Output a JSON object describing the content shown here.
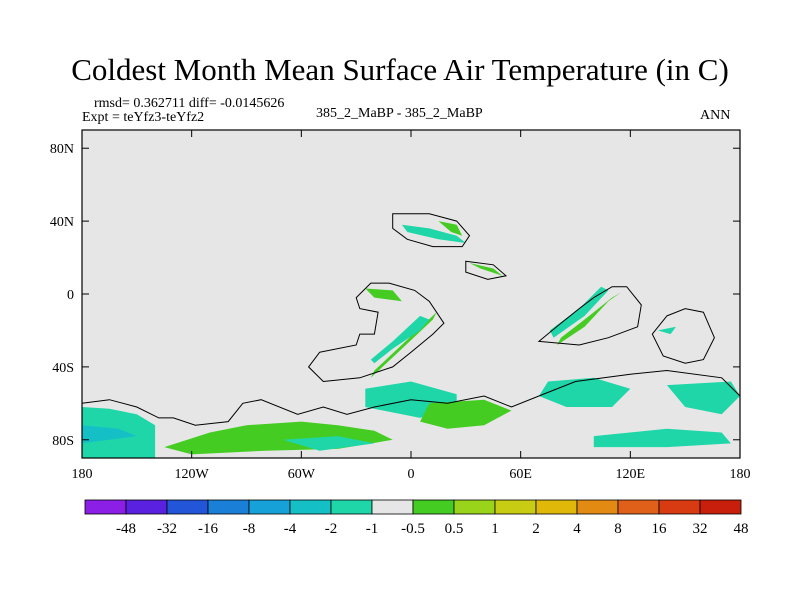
{
  "chart_data": {
    "type": "heatmap",
    "title": "Coldest Month Mean Surface Air Temperature (in C)",
    "stats_line": "rmsd= 0.362711  diff= -0.0145626",
    "expt_line": "Expt = teYfz3-teYfz2",
    "center_label": "385_2_MaBP - 385_2_MaBP",
    "right_label": "ANN",
    "x_ticks": [
      {
        "value": -180,
        "label": "180"
      },
      {
        "value": -120,
        "label": "120W"
      },
      {
        "value": -60,
        "label": "60W"
      },
      {
        "value": 0,
        "label": "0"
      },
      {
        "value": 60,
        "label": "60E"
      },
      {
        "value": 120,
        "label": "120E"
      },
      {
        "value": 180,
        "label": "180"
      }
    ],
    "y_ticks": [
      {
        "value": 80,
        "label": "80N"
      },
      {
        "value": 40,
        "label": "40N"
      },
      {
        "value": 0,
        "label": "0"
      },
      {
        "value": -40,
        "label": "40S"
      },
      {
        "value": -80,
        "label": "80S"
      }
    ],
    "xlim": [
      -180,
      180
    ],
    "ylim": [
      -90,
      90
    ],
    "colorbar": {
      "colors": [
        "#8b1fe6",
        "#5a22e0",
        "#2255d8",
        "#1a7fd6",
        "#16a2d9",
        "#14c0c6",
        "#1fd6a8",
        "#e6e6e6",
        "#44cc22",
        "#99d41a",
        "#c8cc12",
        "#e0b80a",
        "#e28a12",
        "#e0601a",
        "#d83a12",
        "#c81e0c"
      ],
      "labels": [
        "-48",
        "-32",
        "-16",
        "-8",
        "-4",
        "-2",
        "-1",
        "-0.5",
        "0.5",
        "1",
        "2",
        "4",
        "8",
        "16",
        "32",
        "48"
      ]
    },
    "anomaly_regions": [
      {
        "name": "antarctic-west-blue",
        "level": 6,
        "points": [
          [
            -180,
            -62
          ],
          [
            -165,
            -63
          ],
          [
            -150,
            -66
          ],
          [
            -140,
            -72
          ],
          [
            -140,
            -90
          ],
          [
            -180,
            -90
          ]
        ]
      },
      {
        "name": "antarctic-west-blue-deep",
        "level": 5,
        "points": [
          [
            -180,
            -72
          ],
          [
            -160,
            -74
          ],
          [
            -150,
            -78
          ],
          [
            -180,
            -82
          ]
        ]
      },
      {
        "name": "antarctic-peninsula-green",
        "level": 8,
        "points": [
          [
            -135,
            -84
          ],
          [
            -110,
            -76
          ],
          [
            -90,
            -72
          ],
          [
            -60,
            -70
          ],
          [
            -40,
            -72
          ],
          [
            -20,
            -75
          ],
          [
            -10,
            -80
          ],
          [
            -40,
            -85
          ],
          [
            -80,
            -86
          ],
          [
            -120,
            -88
          ]
        ]
      },
      {
        "name": "antarctic-east-cyan",
        "level": 6,
        "points": [
          [
            -70,
            -80
          ],
          [
            -40,
            -78
          ],
          [
            -20,
            -82
          ],
          [
            -50,
            -86
          ]
        ]
      },
      {
        "name": "south-atlantic-cyan",
        "level": 6,
        "points": [
          [
            -25,
            -52
          ],
          [
            0,
            -48
          ],
          [
            25,
            -55
          ],
          [
            25,
            -62
          ],
          [
            5,
            -68
          ],
          [
            -25,
            -62
          ]
        ]
      },
      {
        "name": "south-atlantic-green",
        "level": 8,
        "points": [
          [
            10,
            -60
          ],
          [
            40,
            -58
          ],
          [
            55,
            -64
          ],
          [
            40,
            -72
          ],
          [
            20,
            -74
          ],
          [
            5,
            -70
          ]
        ]
      },
      {
        "name": "indian-ocean-cyan",
        "level": 6,
        "points": [
          [
            75,
            -48
          ],
          [
            100,
            -46
          ],
          [
            120,
            -52
          ],
          [
            110,
            -62
          ],
          [
            85,
            -62
          ],
          [
            70,
            -56
          ]
        ]
      },
      {
        "name": "southern-ocean-east-cyan",
        "level": 6,
        "points": [
          [
            100,
            -78
          ],
          [
            140,
            -74
          ],
          [
            170,
            -76
          ],
          [
            175,
            -82
          ],
          [
            140,
            -84
          ],
          [
            100,
            -84
          ]
        ]
      },
      {
        "name": "south-pacific-east-cyan",
        "level": 6,
        "points": [
          [
            140,
            -50
          ],
          [
            175,
            -48
          ],
          [
            180,
            -56
          ],
          [
            170,
            -66
          ],
          [
            150,
            -62
          ]
        ]
      },
      {
        "name": "gulf-stream-green",
        "level": 8,
        "points": [
          [
            -22,
            -46
          ],
          [
            -5,
            -30
          ],
          [
            12,
            -14
          ],
          [
            14,
            -10
          ],
          [
            -3,
            -26
          ],
          [
            -20,
            -42
          ]
        ]
      },
      {
        "name": "south-america-coast-cyan",
        "level": 6,
        "points": [
          [
            -20,
            -38
          ],
          [
            -10,
            -30
          ],
          [
            5,
            -20
          ],
          [
            10,
            -14
          ],
          [
            5,
            -12
          ],
          [
            -10,
            -26
          ],
          [
            -22,
            -36
          ]
        ]
      },
      {
        "name": "tropical-atlantic-green",
        "level": 8,
        "points": [
          [
            -25,
            3
          ],
          [
            -10,
            2
          ],
          [
            -5,
            -4
          ],
          [
            -20,
            -2
          ]
        ]
      },
      {
        "name": "europe-cyan",
        "level": 6,
        "points": [
          [
            -5,
            38
          ],
          [
            10,
            36
          ],
          [
            25,
            32
          ],
          [
            30,
            28
          ],
          [
            15,
            30
          ],
          [
            -2,
            34
          ]
        ]
      },
      {
        "name": "europe-green",
        "level": 8,
        "points": [
          [
            15,
            40
          ],
          [
            25,
            38
          ],
          [
            28,
            32
          ],
          [
            22,
            34
          ]
        ]
      },
      {
        "name": "asia-green",
        "level": 8,
        "points": [
          [
            32,
            17
          ],
          [
            45,
            14
          ],
          [
            50,
            10
          ],
          [
            38,
            14
          ]
        ]
      },
      {
        "name": "pacific-green-band",
        "level": 8,
        "points": [
          [
            80,
            -28
          ],
          [
            95,
            -18
          ],
          [
            108,
            -4
          ],
          [
            115,
            1
          ],
          [
            110,
            -2
          ],
          [
            95,
            -14
          ],
          [
            82,
            -24
          ]
        ]
      },
      {
        "name": "pacific-cyan-band",
        "level": 6,
        "points": [
          [
            78,
            -24
          ],
          [
            95,
            -12
          ],
          [
            108,
            2
          ],
          [
            104,
            4
          ],
          [
            92,
            -8
          ],
          [
            76,
            -20
          ]
        ]
      },
      {
        "name": "west-pacific-cyan",
        "level": 6,
        "points": [
          [
            135,
            -20
          ],
          [
            145,
            -18
          ],
          [
            142,
            -22
          ]
        ]
      }
    ],
    "contour_outlines": [
      {
        "name": "antarctica-outline",
        "points": [
          [
            -180,
            -60
          ],
          [
            -165,
            -58
          ],
          [
            -150,
            -62
          ],
          [
            -138,
            -68
          ],
          [
            -130,
            -68
          ],
          [
            -118,
            -72
          ],
          [
            -100,
            -70
          ],
          [
            -92,
            -60
          ],
          [
            -82,
            -58
          ],
          [
            -62,
            -66
          ],
          [
            -48,
            -62
          ],
          [
            -35,
            -66
          ],
          [
            -20,
            -62
          ],
          [
            0,
            -58
          ],
          [
            20,
            -60
          ],
          [
            40,
            -56
          ],
          [
            55,
            -62
          ],
          [
            70,
            -56
          ],
          [
            90,
            -48
          ],
          [
            120,
            -44
          ],
          [
            140,
            -42
          ],
          [
            170,
            -46
          ],
          [
            180,
            -56
          ]
        ]
      },
      {
        "name": "continent-a-outline",
        "points": [
          [
            -50,
            -32
          ],
          [
            -30,
            -28
          ],
          [
            -28,
            -22
          ],
          [
            -20,
            -22
          ],
          [
            -18,
            -10
          ],
          [
            -28,
            -8
          ],
          [
            -30,
            -2
          ],
          [
            -22,
            6
          ],
          [
            -12,
            6
          ],
          [
            2,
            2
          ],
          [
            10,
            -4
          ],
          [
            18,
            -16
          ],
          [
            12,
            -22
          ],
          [
            0,
            -32
          ],
          [
            -10,
            -40
          ],
          [
            -28,
            -46
          ],
          [
            -48,
            -48
          ],
          [
            -56,
            -40
          ]
        ]
      },
      {
        "name": "continent-b-outline",
        "points": [
          [
            70,
            -26
          ],
          [
            82,
            -16
          ],
          [
            92,
            -8
          ],
          [
            100,
            -2
          ],
          [
            110,
            4
          ],
          [
            118,
            4
          ],
          [
            126,
            -6
          ],
          [
            124,
            -18
          ],
          [
            108,
            -24
          ],
          [
            92,
            -28
          ]
        ]
      },
      {
        "name": "continent-c-outline",
        "points": [
          [
            140,
            -12
          ],
          [
            150,
            -8
          ],
          [
            160,
            -10
          ],
          [
            166,
            -24
          ],
          [
            160,
            -36
          ],
          [
            150,
            -38
          ],
          [
            138,
            -34
          ],
          [
            132,
            -22
          ]
        ]
      },
      {
        "name": "continent-d-outline",
        "points": [
          [
            -10,
            44
          ],
          [
            10,
            44
          ],
          [
            25,
            40
          ],
          [
            32,
            32
          ],
          [
            28,
            26
          ],
          [
            12,
            26
          ],
          [
            -2,
            30
          ],
          [
            -10,
            36
          ]
        ]
      },
      {
        "name": "continent-e-outline",
        "points": [
          [
            30,
            18
          ],
          [
            45,
            16
          ],
          [
            52,
            10
          ],
          [
            42,
            8
          ],
          [
            30,
            12
          ]
        ]
      }
    ]
  }
}
